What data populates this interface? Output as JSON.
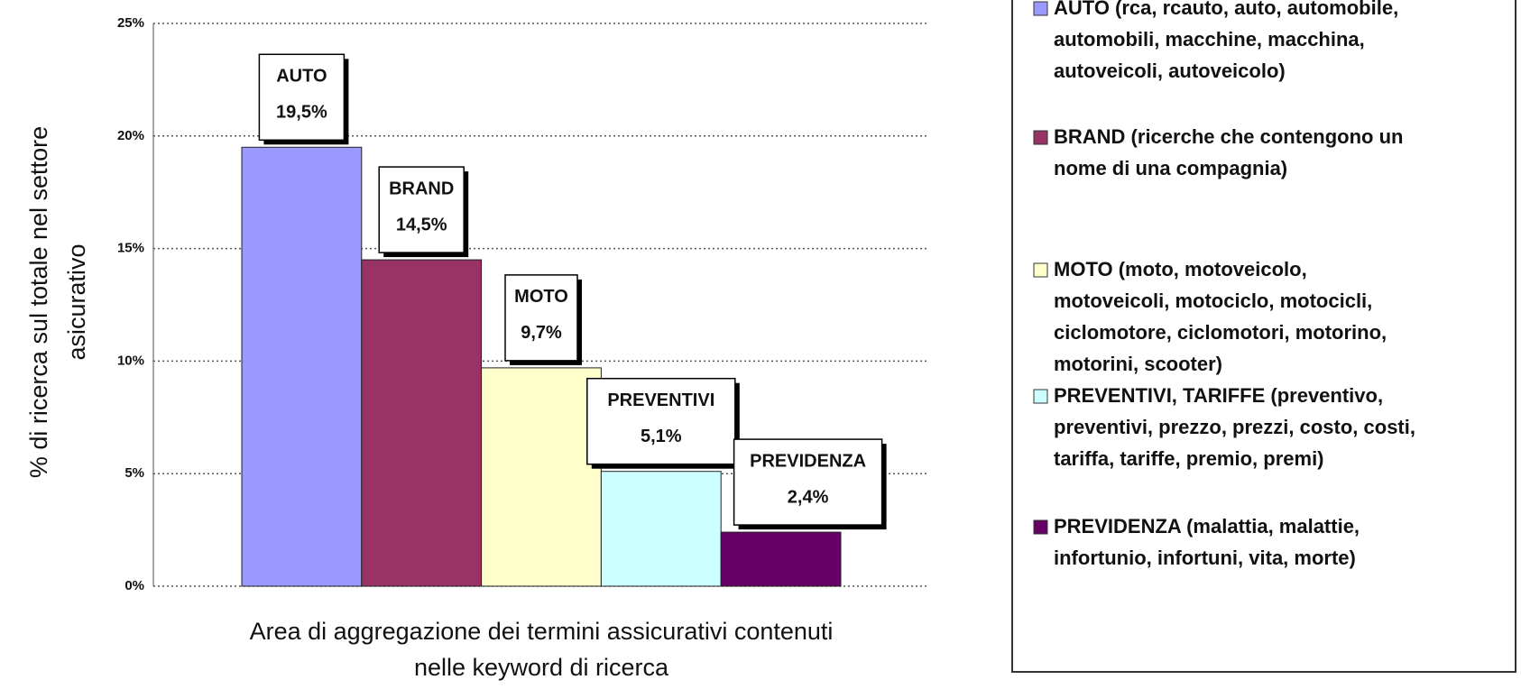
{
  "chart_data": {
    "type": "bar",
    "categories": [
      "AUTO",
      "BRAND",
      "MOTO",
      "PREVENTIVI",
      "PREVIDENZA"
    ],
    "values": [
      19.5,
      14.5,
      9.7,
      5.1,
      2.4
    ],
    "value_labels": [
      "19,5%",
      "14,5%",
      "9,7%",
      "5,1%",
      "2,4%"
    ],
    "colors": [
      "#9999ff",
      "#993366",
      "#ffffcc",
      "#ccffff",
      "#660066"
    ],
    "ylim": [
      0,
      25
    ],
    "yticks": [
      {
        "value": 0,
        "label": "0%"
      },
      {
        "value": 5,
        "label": "5%"
      },
      {
        "value": 10,
        "label": "10%"
      },
      {
        "value": 15,
        "label": "15%"
      },
      {
        "value": 20,
        "label": "20%"
      },
      {
        "value": 25,
        "label": "25%"
      }
    ],
    "grid": true,
    "y_label": [
      "% di ricerca sul totale nel settore",
      "asicurativo"
    ],
    "x_label": [
      "Area di aggregazione dei termini assicurativi contenuti",
      "nelle keyword di ricerca"
    ],
    "legend": [
      [
        "AUTO (rca, rcauto, auto, automobile,",
        "automobili, macchine, macchina,",
        "autoveicoli, autoveicolo)"
      ],
      [
        "BRAND (ricerche che contengono un",
        "nome di una compagnia)"
      ],
      [
        "MOTO (moto, motoveicolo,",
        "motoveicoli, motociclo, motocicli,",
        "ciclomotore, ciclomotori, motorino,",
        "motorini, scooter)"
      ],
      [
        "PREVENTIVI, TARIFFE (preventivo,",
        "preventivi, prezzo, prezzi, costo, costi,",
        "tariffa, tariffe, premio, premi)"
      ],
      [
        "PREVIDENZA (malattia, malattie,",
        "infortunio, infortuni, vita, morte)"
      ]
    ]
  }
}
